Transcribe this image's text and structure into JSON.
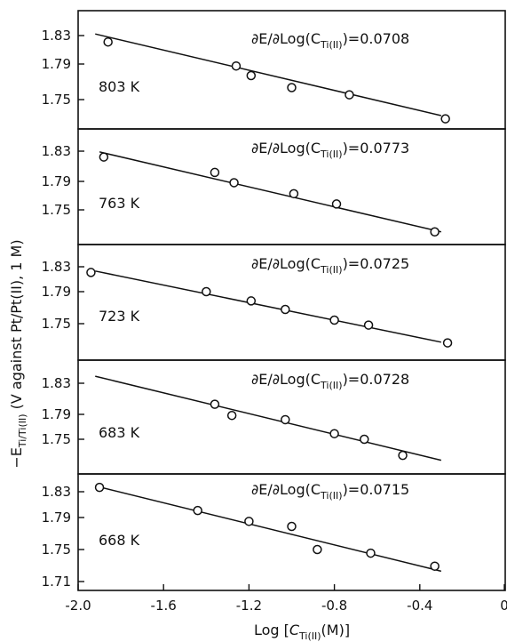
{
  "figure": {
    "ylabel": {
      "prefix": "−E",
      "sub": "Ti/Ti(II)",
      "suffix": " (V against Pt/Pt(II), 1 M)"
    },
    "xlabel": {
      "prefix": "Log [",
      "c": "C",
      "sub": "Ti(II)",
      "suffix": "(M)]"
    }
  },
  "chart_data": [
    {
      "type": "scatter",
      "temperature_label": "803 K",
      "slope_label": {
        "prefix": "∂E/∂Log(C",
        "sub": "Ti(II)",
        "suffix": ")=0.0708"
      },
      "ylim": [
        1.72,
        1.84
      ],
      "yticks": [
        "1.83",
        "1.79",
        "1.75"
      ],
      "x": [
        -1.86,
        -1.26,
        -1.19,
        -1.0,
        -0.73,
        -0.28
      ],
      "y": [
        1.822,
        1.792,
        1.78,
        1.765,
        1.756,
        1.726
      ],
      "fit_line": {
        "x": [
          -1.92,
          -0.3
        ],
        "y": [
          1.832,
          1.73
        ]
      }
    },
    {
      "type": "scatter",
      "temperature_label": "763 K",
      "slope_label": {
        "prefix": "∂E/∂Log(C",
        "sub": "Ti(II)",
        "suffix": ")=0.0773"
      },
      "ylim": [
        1.72,
        1.85
      ],
      "yticks": [
        "1.83",
        "1.79",
        "1.75"
      ],
      "x": [
        -1.88,
        -1.36,
        -1.27,
        -0.99,
        -0.79,
        -0.33
      ],
      "y": [
        1.822,
        1.801,
        1.787,
        1.772,
        1.758,
        1.72
      ],
      "fit_line": {
        "x": [
          -1.9,
          -0.3
        ],
        "y": [
          1.829,
          1.72
        ]
      }
    },
    {
      "type": "scatter",
      "temperature_label": "723 K",
      "slope_label": {
        "prefix": "∂E/∂Log(C",
        "sub": "Ti(II)",
        "suffix": ")=0.0725"
      },
      "ylim": [
        1.72,
        1.85
      ],
      "yticks": [
        "1.83",
        "1.79",
        "1.75"
      ],
      "x": [
        -1.94,
        -1.4,
        -1.19,
        -1.03,
        -0.8,
        -0.64,
        -0.27
      ],
      "y": [
        1.822,
        1.795,
        1.782,
        1.77,
        1.755,
        1.748,
        1.723
      ],
      "fit_line": {
        "x": [
          -1.92,
          -0.3
        ],
        "y": [
          1.824,
          1.724
        ]
      }
    },
    {
      "type": "scatter",
      "temperature_label": "683 K",
      "slope_label": {
        "prefix": "∂E/∂Log(C",
        "sub": "Ti(II)",
        "suffix": ")=0.0728"
      },
      "ylim": [
        1.72,
        1.85
      ],
      "yticks": [
        "1.83",
        "1.79",
        "1.75"
      ],
      "x": [
        -1.36,
        -1.28,
        -1.03,
        -0.8,
        -0.66,
        -0.48
      ],
      "y": [
        1.8,
        1.784,
        1.778,
        1.758,
        1.75,
        1.727
      ],
      "fit_line": {
        "x": [
          -1.92,
          -0.3
        ],
        "y": [
          1.84,
          1.72
        ]
      }
    },
    {
      "type": "scatter",
      "temperature_label": "668 K",
      "slope_label": {
        "prefix": "∂E/∂Log(C",
        "sub": "Ti(II)",
        "suffix": ")=0.0715"
      },
      "ylim": [
        1.71,
        1.85
      ],
      "yticks": [
        "1.83",
        "1.79",
        "1.75",
        "1.71"
      ],
      "x": [
        -1.9,
        -1.44,
        -1.2,
        -1.0,
        -0.88,
        -0.63,
        -0.33
      ],
      "y": [
        1.836,
        1.804,
        1.789,
        1.782,
        1.75,
        1.745,
        1.727
      ],
      "fit_line": {
        "x": [
          -1.92,
          -0.3
        ],
        "y": [
          1.838,
          1.72
        ]
      }
    }
  ],
  "x_axis": {
    "ticks": [
      {
        "value": -2.0,
        "label": "-2.0"
      },
      {
        "value": -1.6,
        "label": "-1.6"
      },
      {
        "value": -1.2,
        "label": "-1.2"
      },
      {
        "value": -0.8,
        "label": "-0.8"
      },
      {
        "value": -0.4,
        "label": "-0.4"
      },
      {
        "value": 0.0,
        "label": "0"
      }
    ],
    "xlim": [
      -2.0,
      0.0
    ]
  }
}
